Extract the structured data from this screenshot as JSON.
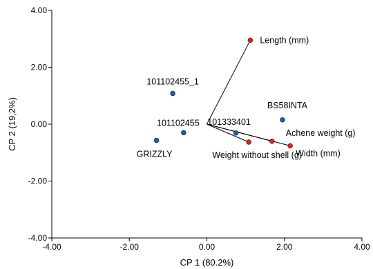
{
  "chart_data": {
    "type": "scatter",
    "xlabel": "CP 1 (80.2%)",
    "ylabel": "CP 2 (19,2%)",
    "xlim": [
      -4,
      4
    ],
    "ylim": [
      -4,
      4
    ],
    "x_ticks": [
      -4,
      -2,
      0,
      2,
      4
    ],
    "y_ticks": [
      -4,
      -2,
      0,
      2,
      4
    ],
    "x_tick_labels": [
      "-4.00",
      "-2.00",
      "0.00",
      "2.00",
      "4.00"
    ],
    "y_tick_labels": [
      "-4.00",
      "-2.00",
      "0.00",
      "2.00",
      "4.00"
    ],
    "grid": false,
    "observations": [
      {
        "label": "101102455_1",
        "x": -0.88,
        "y": 1.08
      },
      {
        "label": "101102455",
        "x": -0.6,
        "y": -0.3
      },
      {
        "label": "GRIZZLY",
        "x": -1.3,
        "y": -0.57
      },
      {
        "label": "101333401",
        "x": 0.75,
        "y": -0.31
      },
      {
        "label": "BS58INTA",
        "x": 1.95,
        "y": 0.15
      }
    ],
    "variables": [
      {
        "label": "Length (mm)",
        "x": 1.12,
        "y": 2.95
      },
      {
        "label": "Weight without shell (g)",
        "x": 1.08,
        "y": -0.63
      },
      {
        "label": "Achene weight (g)",
        "x": 1.68,
        "y": -0.6
      },
      {
        "label": "Width (mm)",
        "x": 2.15,
        "y": -0.76
      }
    ],
    "colors": {
      "observation": "#1f5fa8",
      "variable": "#e02424"
    }
  }
}
